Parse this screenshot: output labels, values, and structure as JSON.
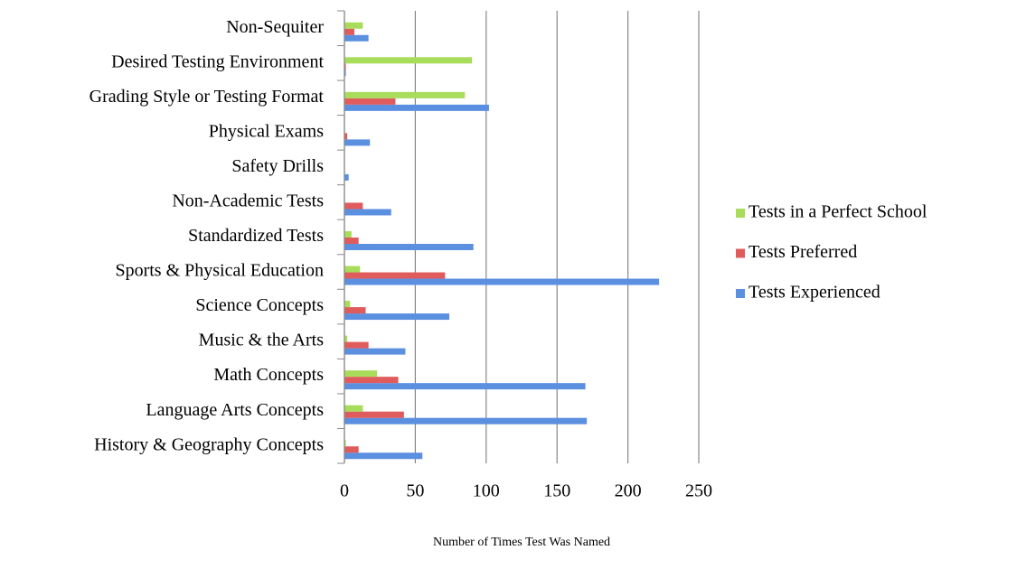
{
  "chart_data": {
    "type": "hbar",
    "x_label": "Number of Times Test Was Named",
    "categories": [
      "History & Geography Concepts",
      "Language Arts Concepts",
      "Math Concepts",
      "Music & the Arts",
      "Science Concepts",
      "Sports & Physical Education",
      "Standardized Tests",
      "Non-Academic Tests",
      "Safety Drills",
      "Physical Exams",
      "Grading Style or Testing Format",
      "Desired Testing Environment",
      "Non-Sequiter"
    ],
    "series": [
      {
        "name": "Tests Experienced",
        "color": "#5b8fe0",
        "values": [
          55,
          171,
          170,
          43,
          74,
          222,
          91,
          33,
          3,
          18,
          102,
          1,
          17
        ]
      },
      {
        "name": "Tests Preferred",
        "color": "#e05b5b",
        "values": [
          10,
          42,
          38,
          17,
          15,
          71,
          10,
          13,
          0,
          2,
          36,
          1,
          7
        ]
      },
      {
        "name": "Tests in a Perfect School",
        "color": "#a8dc5a",
        "values": [
          1,
          13,
          23,
          2,
          4,
          11,
          5,
          0,
          0,
          0,
          85,
          90,
          13
        ]
      }
    ],
    "xlim": [
      0,
      250
    ],
    "xticks": [
      0,
      50,
      100,
      150,
      200,
      250
    ],
    "grid": true,
    "legend": "right"
  }
}
